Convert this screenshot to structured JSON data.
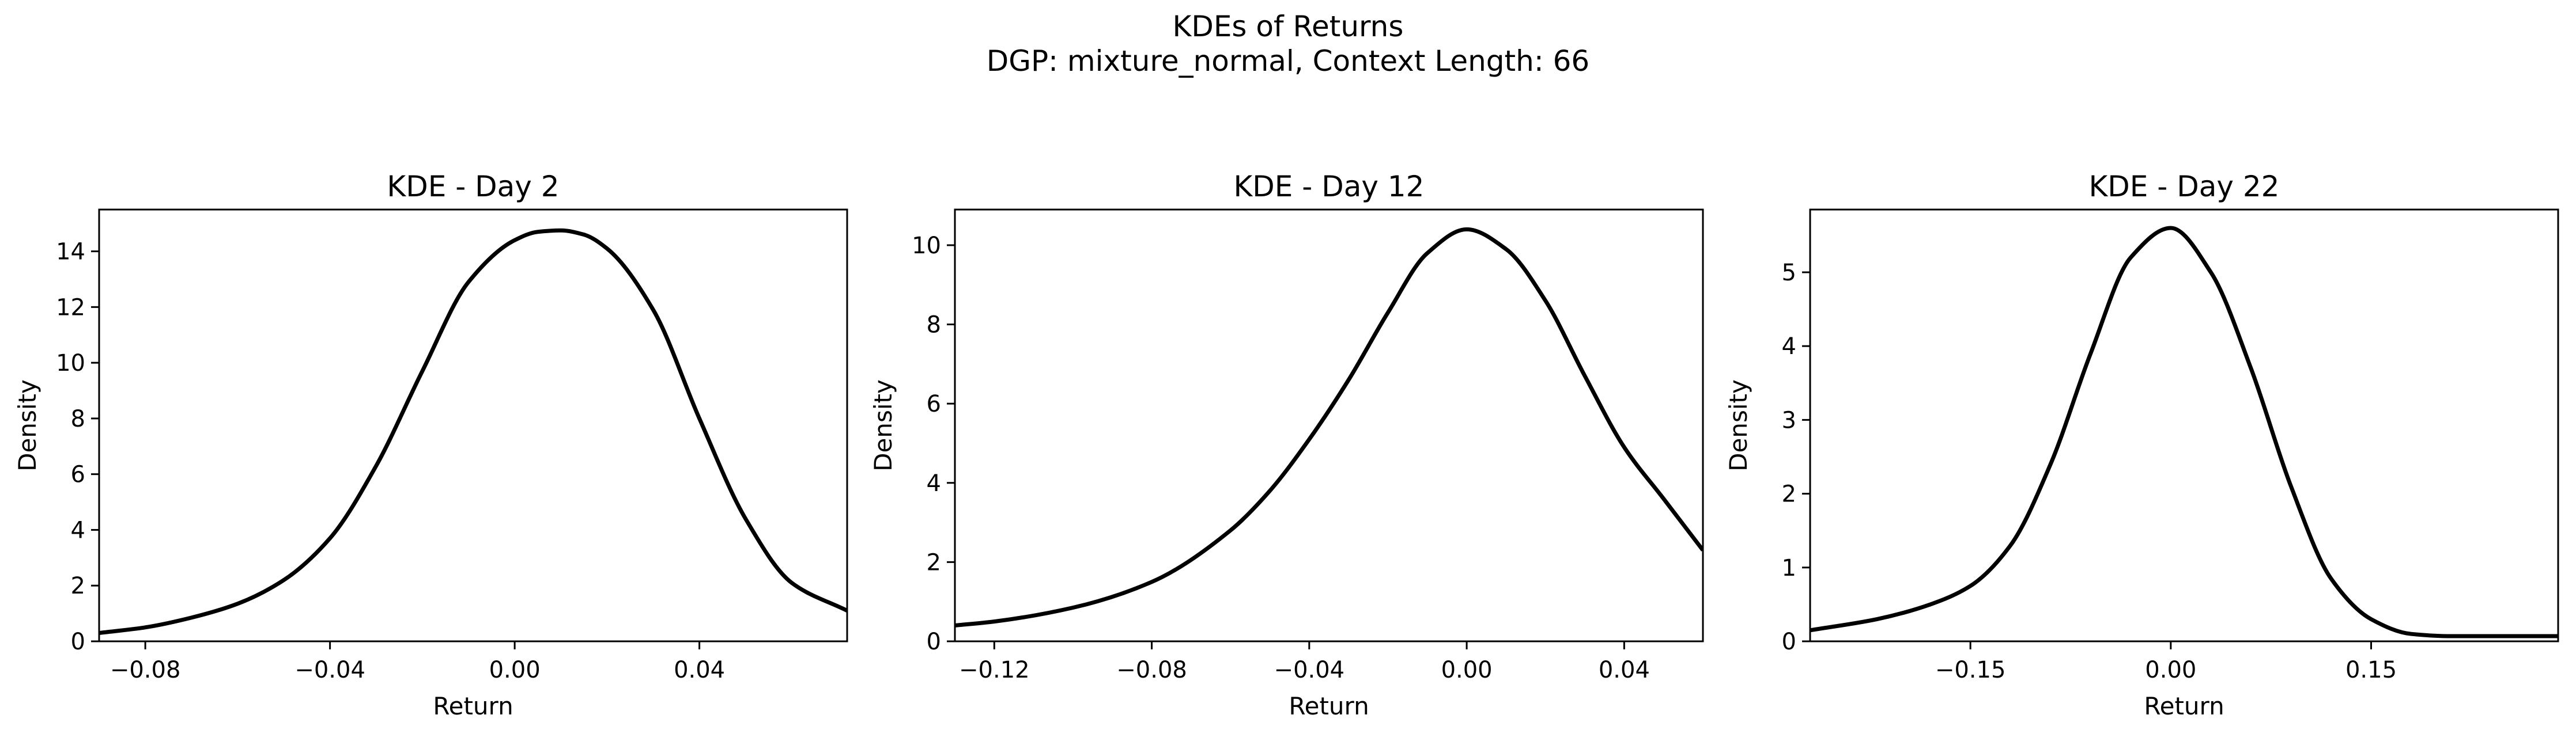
{
  "figure": {
    "suptitle_line1": "KDEs of Returns",
    "suptitle_line2": "DGP: mixture_normal, Context Length: 66",
    "line_color": "#000000"
  },
  "chart_data": [
    {
      "type": "line",
      "title": "KDE - Day 2",
      "xlabel": "Return",
      "ylabel": "Density",
      "xlim": [
        -0.09,
        0.072
      ],
      "ylim": [
        0,
        15.5
      ],
      "xticks": [
        -0.08,
        -0.04,
        0.0,
        0.04
      ],
      "xtick_labels": [
        "−0.08",
        "−0.04",
        "0.00",
        "0.04"
      ],
      "yticks": [
        0,
        2,
        4,
        6,
        8,
        10,
        12,
        14
      ],
      "ytick_labels": [
        "0",
        "2",
        "4",
        "6",
        "8",
        "10",
        "12",
        "14"
      ],
      "grid": false,
      "series": [
        {
          "x": [
            -0.09,
            -0.08,
            -0.07,
            -0.06,
            -0.05,
            -0.04,
            -0.03,
            -0.02,
            -0.01,
            0.0,
            0.005,
            0.01,
            0.015,
            0.02,
            0.03,
            0.04,
            0.05,
            0.06,
            0.072
          ],
          "y": [
            0.3,
            0.5,
            0.85,
            1.35,
            2.2,
            3.7,
            6.3,
            9.7,
            12.9,
            14.4,
            14.7,
            14.75,
            14.6,
            14.1,
            11.9,
            8.0,
            4.4,
            2.1,
            1.1
          ]
        }
      ]
    },
    {
      "type": "line",
      "title": "KDE - Day 12",
      "xlabel": "Return",
      "ylabel": "Density",
      "xlim": [
        -0.13,
        0.06
      ],
      "ylim": [
        0,
        10.9
      ],
      "xticks": [
        -0.12,
        -0.08,
        -0.04,
        0.0,
        0.04
      ],
      "xtick_labels": [
        "−0.12",
        "−0.08",
        "−0.04",
        "0.00",
        "0.04"
      ],
      "yticks": [
        0,
        2,
        4,
        6,
        8,
        10
      ],
      "ytick_labels": [
        "0",
        "2",
        "4",
        "6",
        "8",
        "10"
      ],
      "grid": false,
      "series": [
        {
          "x": [
            -0.13,
            -0.12,
            -0.1,
            -0.08,
            -0.06,
            -0.05,
            -0.04,
            -0.03,
            -0.02,
            -0.01,
            0.0,
            0.01,
            0.02,
            0.03,
            0.04,
            0.05,
            0.06
          ],
          "y": [
            0.4,
            0.5,
            0.85,
            1.5,
            2.8,
            3.8,
            5.1,
            6.6,
            8.3,
            9.8,
            10.4,
            9.9,
            8.6,
            6.7,
            4.9,
            3.6,
            2.3
          ]
        }
      ]
    },
    {
      "type": "line",
      "title": "KDE - Day 22",
      "xlabel": "Return",
      "ylabel": "Density",
      "xlim": [
        -0.27,
        0.29
      ],
      "ylim": [
        0,
        5.85
      ],
      "xticks": [
        -0.15,
        0.0,
        0.15
      ],
      "xtick_labels": [
        "−0.15",
        "0.00",
        "0.15"
      ],
      "yticks": [
        0,
        1,
        2,
        3,
        4,
        5
      ],
      "ytick_labels": [
        "0",
        "1",
        "2",
        "3",
        "4",
        "5"
      ],
      "grid": false,
      "series": [
        {
          "x": [
            -0.27,
            -0.22,
            -0.18,
            -0.15,
            -0.12,
            -0.09,
            -0.06,
            -0.03,
            0.0,
            0.03,
            0.06,
            0.09,
            0.12,
            0.15,
            0.18,
            0.21,
            0.25,
            0.29
          ],
          "y": [
            0.15,
            0.3,
            0.5,
            0.75,
            1.3,
            2.4,
            3.9,
            5.2,
            5.6,
            5.0,
            3.7,
            2.1,
            0.85,
            0.3,
            0.1,
            0.07,
            0.07,
            0.07
          ]
        }
      ]
    }
  ]
}
